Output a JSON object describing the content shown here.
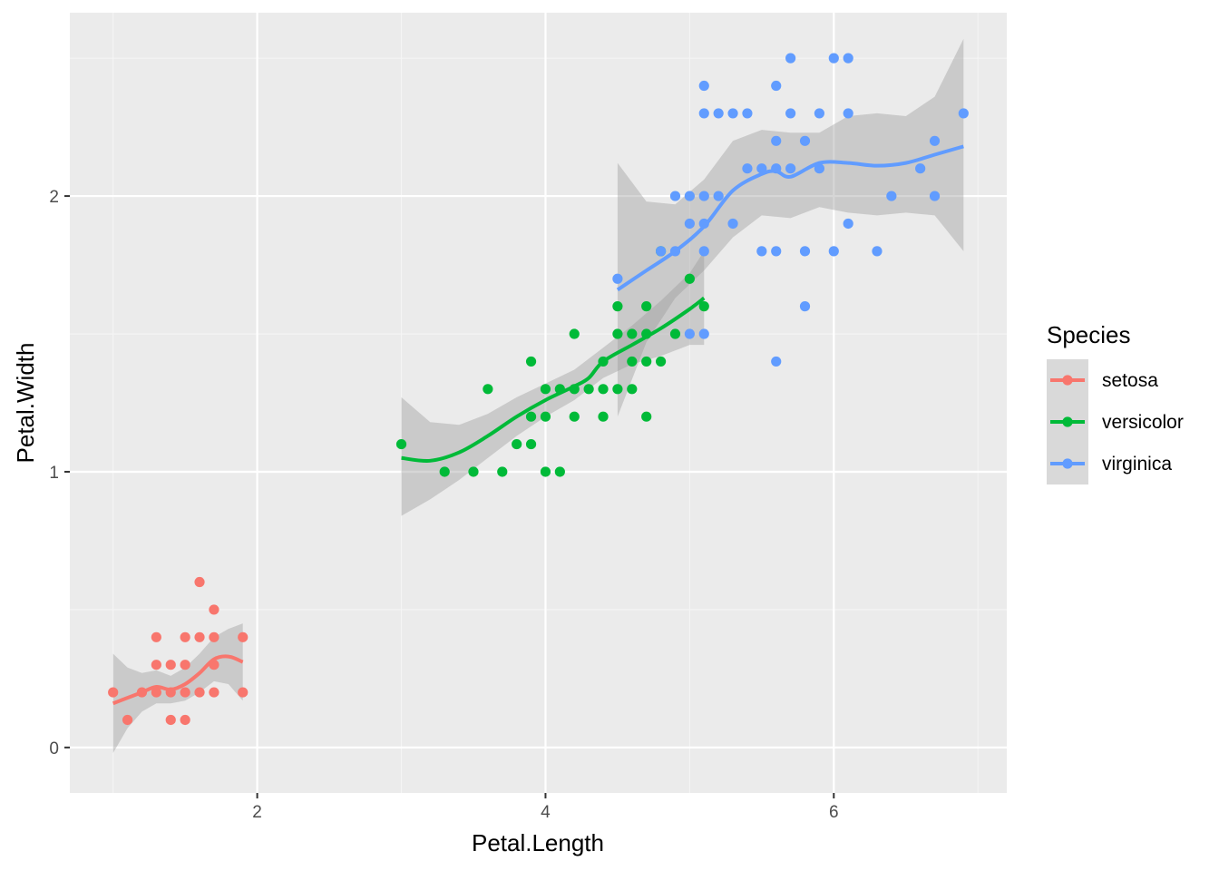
{
  "chart_data": {
    "type": "scatter",
    "xlabel": "Petal.Length",
    "ylabel": "Petal.Width",
    "xlim": [
      0.7,
      7.2
    ],
    "ylim": [
      -0.165,
      2.665
    ],
    "x_ticks": [
      2,
      4,
      6
    ],
    "y_ticks": [
      0,
      1,
      2
    ],
    "x_tick_labels": [
      "2",
      "4",
      "6"
    ],
    "y_tick_labels": [
      "0",
      "1",
      "2"
    ],
    "grid": true,
    "smoother": "loess with confidence band",
    "legend": {
      "title": "Species",
      "position": "right"
    },
    "series": [
      {
        "name": "setosa",
        "color": "#F8766D",
        "points": [
          [
            1.0,
            0.2
          ],
          [
            1.1,
            0.1
          ],
          [
            1.2,
            0.2
          ],
          [
            1.3,
            0.2
          ],
          [
            1.3,
            0.3
          ],
          [
            1.3,
            0.4
          ],
          [
            1.4,
            0.1
          ],
          [
            1.4,
            0.2
          ],
          [
            1.4,
            0.3
          ],
          [
            1.5,
            0.1
          ],
          [
            1.5,
            0.2
          ],
          [
            1.5,
            0.3
          ],
          [
            1.5,
            0.4
          ],
          [
            1.6,
            0.2
          ],
          [
            1.6,
            0.4
          ],
          [
            1.6,
            0.6
          ],
          [
            1.7,
            0.2
          ],
          [
            1.7,
            0.3
          ],
          [
            1.7,
            0.4
          ],
          [
            1.7,
            0.5
          ],
          [
            1.9,
            0.2
          ],
          [
            1.9,
            0.4
          ]
        ],
        "smooth": [
          [
            1.0,
            0.16
          ],
          [
            1.1,
            0.18
          ],
          [
            1.2,
            0.2
          ],
          [
            1.3,
            0.22
          ],
          [
            1.4,
            0.21
          ],
          [
            1.5,
            0.23
          ],
          [
            1.6,
            0.27
          ],
          [
            1.7,
            0.32
          ],
          [
            1.8,
            0.33
          ],
          [
            1.9,
            0.31
          ]
        ],
        "band_upper": [
          [
            1.0,
            0.34
          ],
          [
            1.1,
            0.29
          ],
          [
            1.2,
            0.27
          ],
          [
            1.3,
            0.28
          ],
          [
            1.4,
            0.26
          ],
          [
            1.5,
            0.29
          ],
          [
            1.6,
            0.34
          ],
          [
            1.7,
            0.4
          ],
          [
            1.8,
            0.43
          ],
          [
            1.9,
            0.45
          ]
        ],
        "band_lower": [
          [
            1.0,
            -0.02
          ],
          [
            1.1,
            0.07
          ],
          [
            1.2,
            0.13
          ],
          [
            1.3,
            0.16
          ],
          [
            1.4,
            0.16
          ],
          [
            1.5,
            0.17
          ],
          [
            1.6,
            0.2
          ],
          [
            1.7,
            0.24
          ],
          [
            1.8,
            0.23
          ],
          [
            1.9,
            0.17
          ]
        ]
      },
      {
        "name": "versicolor",
        "color": "#00BA38",
        "points": [
          [
            3.0,
            1.1
          ],
          [
            3.3,
            1.0
          ],
          [
            3.5,
            1.0
          ],
          [
            3.6,
            1.3
          ],
          [
            3.7,
            1.0
          ],
          [
            3.8,
            1.1
          ],
          [
            3.9,
            1.1
          ],
          [
            3.9,
            1.2
          ],
          [
            3.9,
            1.4
          ],
          [
            4.0,
            1.0
          ],
          [
            4.0,
            1.2
          ],
          [
            4.0,
            1.3
          ],
          [
            4.1,
            1.0
          ],
          [
            4.1,
            1.3
          ],
          [
            4.2,
            1.2
          ],
          [
            4.2,
            1.3
          ],
          [
            4.2,
            1.5
          ],
          [
            4.3,
            1.3
          ],
          [
            4.4,
            1.2
          ],
          [
            4.4,
            1.3
          ],
          [
            4.4,
            1.4
          ],
          [
            4.5,
            1.3
          ],
          [
            4.5,
            1.5
          ],
          [
            4.5,
            1.6
          ],
          [
            4.6,
            1.3
          ],
          [
            4.6,
            1.4
          ],
          [
            4.6,
            1.5
          ],
          [
            4.7,
            1.2
          ],
          [
            4.7,
            1.4
          ],
          [
            4.7,
            1.5
          ],
          [
            4.7,
            1.6
          ],
          [
            4.8,
            1.4
          ],
          [
            4.8,
            1.8
          ],
          [
            4.9,
            1.5
          ],
          [
            5.0,
            1.7
          ],
          [
            5.1,
            1.6
          ]
        ],
        "smooth": [
          [
            3.0,
            1.05
          ],
          [
            3.2,
            1.04
          ],
          [
            3.4,
            1.07
          ],
          [
            3.6,
            1.13
          ],
          [
            3.8,
            1.2
          ],
          [
            4.0,
            1.26
          ],
          [
            4.2,
            1.31
          ],
          [
            4.3,
            1.34
          ],
          [
            4.4,
            1.4
          ],
          [
            4.6,
            1.46
          ],
          [
            4.8,
            1.52
          ],
          [
            5.0,
            1.59
          ],
          [
            5.1,
            1.63
          ]
        ],
        "band_upper": [
          [
            3.0,
            1.27
          ],
          [
            3.2,
            1.18
          ],
          [
            3.4,
            1.17
          ],
          [
            3.6,
            1.21
          ],
          [
            3.8,
            1.27
          ],
          [
            4.0,
            1.32
          ],
          [
            4.2,
            1.37
          ],
          [
            4.4,
            1.45
          ],
          [
            4.6,
            1.53
          ],
          [
            4.8,
            1.62
          ],
          [
            5.0,
            1.72
          ],
          [
            5.1,
            1.8
          ]
        ],
        "band_lower": [
          [
            3.0,
            0.84
          ],
          [
            3.2,
            0.9
          ],
          [
            3.4,
            0.97
          ],
          [
            3.6,
            1.05
          ],
          [
            3.8,
            1.13
          ],
          [
            4.0,
            1.2
          ],
          [
            4.2,
            1.26
          ],
          [
            4.4,
            1.34
          ],
          [
            4.6,
            1.39
          ],
          [
            4.8,
            1.42
          ],
          [
            5.0,
            1.46
          ],
          [
            5.1,
            1.46
          ]
        ]
      },
      {
        "name": "virginica",
        "color": "#619CFF",
        "points": [
          [
            4.5,
            1.7
          ],
          [
            4.8,
            1.8
          ],
          [
            4.9,
            1.8
          ],
          [
            4.9,
            2.0
          ],
          [
            5.0,
            1.5
          ],
          [
            5.0,
            1.9
          ],
          [
            5.0,
            2.0
          ],
          [
            5.1,
            1.5
          ],
          [
            5.1,
            1.8
          ],
          [
            5.1,
            1.9
          ],
          [
            5.1,
            2.0
          ],
          [
            5.1,
            2.3
          ],
          [
            5.1,
            2.4
          ],
          [
            5.2,
            2.0
          ],
          [
            5.2,
            2.3
          ],
          [
            5.3,
            1.9
          ],
          [
            5.3,
            2.3
          ],
          [
            5.4,
            2.1
          ],
          [
            5.4,
            2.3
          ],
          [
            5.5,
            1.8
          ],
          [
            5.5,
            2.1
          ],
          [
            5.6,
            1.4
          ],
          [
            5.6,
            1.8
          ],
          [
            5.6,
            2.1
          ],
          [
            5.6,
            2.2
          ],
          [
            5.6,
            2.4
          ],
          [
            5.7,
            2.1
          ],
          [
            5.7,
            2.3
          ],
          [
            5.7,
            2.5
          ],
          [
            5.8,
            1.6
          ],
          [
            5.8,
            1.8
          ],
          [
            5.8,
            2.2
          ],
          [
            5.9,
            2.1
          ],
          [
            5.9,
            2.3
          ],
          [
            6.0,
            1.8
          ],
          [
            6.0,
            2.5
          ],
          [
            6.1,
            1.9
          ],
          [
            6.1,
            2.3
          ],
          [
            6.1,
            2.5
          ],
          [
            6.3,
            1.8
          ],
          [
            6.4,
            2.0
          ],
          [
            6.6,
            2.1
          ],
          [
            6.7,
            2.0
          ],
          [
            6.7,
            2.2
          ],
          [
            6.9,
            2.3
          ]
        ],
        "smooth": [
          [
            4.5,
            1.66
          ],
          [
            4.7,
            1.73
          ],
          [
            4.9,
            1.8
          ],
          [
            5.1,
            1.89
          ],
          [
            5.3,
            2.02
          ],
          [
            5.5,
            2.08
          ],
          [
            5.6,
            2.09
          ],
          [
            5.7,
            2.07
          ],
          [
            5.9,
            2.12
          ],
          [
            6.1,
            2.12
          ],
          [
            6.3,
            2.11
          ],
          [
            6.5,
            2.12
          ],
          [
            6.7,
            2.15
          ],
          [
            6.9,
            2.18
          ]
        ],
        "band_upper": [
          [
            4.5,
            2.12
          ],
          [
            4.7,
            1.98
          ],
          [
            4.9,
            1.97
          ],
          [
            5.1,
            2.06
          ],
          [
            5.3,
            2.2
          ],
          [
            5.5,
            2.24
          ],
          [
            5.7,
            2.23
          ],
          [
            5.9,
            2.23
          ],
          [
            6.1,
            2.29
          ],
          [
            6.3,
            2.3
          ],
          [
            6.5,
            2.29
          ],
          [
            6.7,
            2.36
          ],
          [
            6.9,
            2.57
          ]
        ],
        "band_lower": [
          [
            4.5,
            1.2
          ],
          [
            4.7,
            1.47
          ],
          [
            4.9,
            1.63
          ],
          [
            5.1,
            1.73
          ],
          [
            5.3,
            1.85
          ],
          [
            5.5,
            1.93
          ],
          [
            5.7,
            1.92
          ],
          [
            5.9,
            1.96
          ],
          [
            6.1,
            1.94
          ],
          [
            6.3,
            1.93
          ],
          [
            6.5,
            1.94
          ],
          [
            6.7,
            1.93
          ],
          [
            6.9,
            1.8
          ]
        ]
      }
    ]
  }
}
